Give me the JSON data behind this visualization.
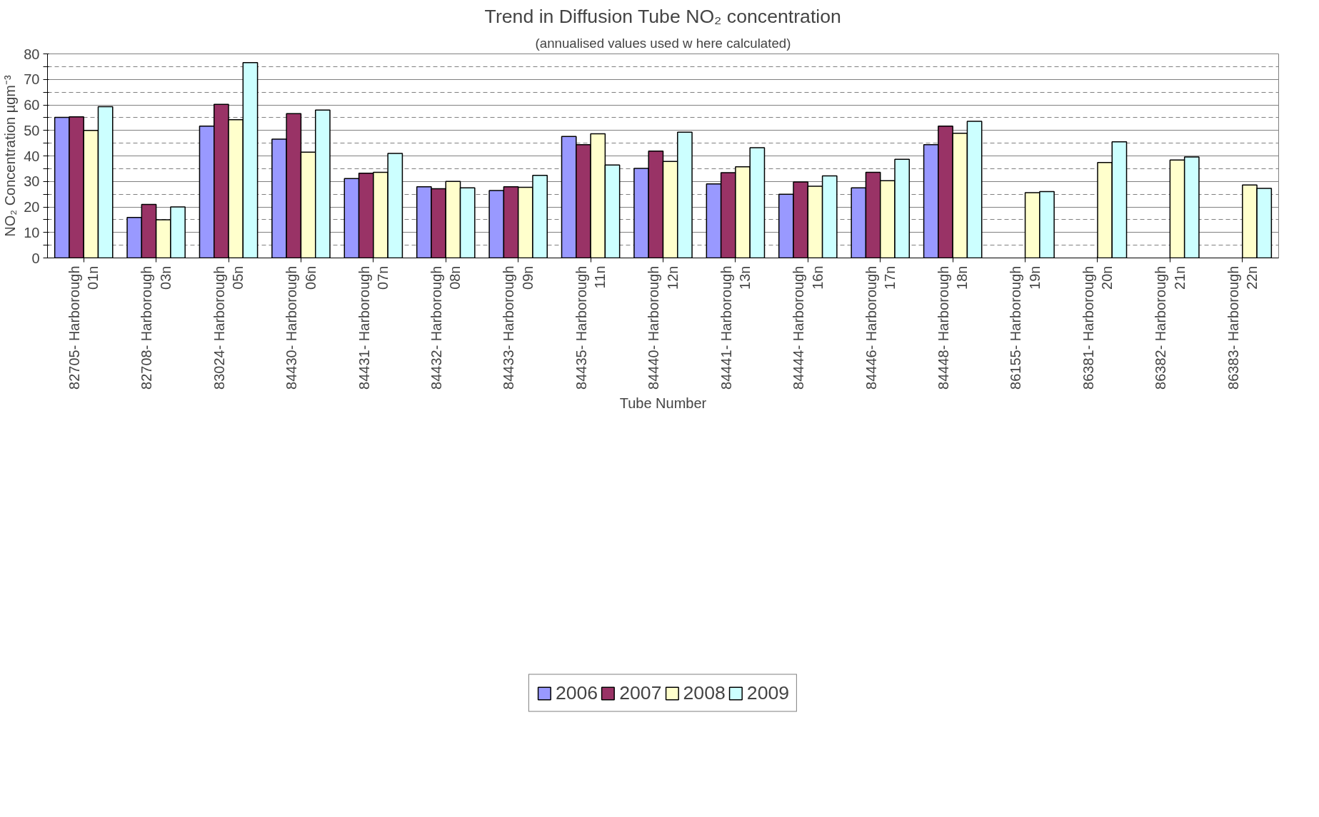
{
  "chart_data": {
    "type": "bar",
    "title": "Trend in Diffusion Tube NO₂ concentration",
    "subtitle": "(annualised values used w here calculated)",
    "xlabel": "Tube Number",
    "ylabel": "NO₂ Concentration µgm⁻³",
    "categories": [
      "82705- Harborough 01n",
      "82708- Harborough 03n",
      "83024- Harborough 05n",
      "84430- Harborough 06n",
      "84431- Harborough 07n",
      "84432- Harborough 08n",
      "84433- Harborough 09n",
      "84435- Harborough 11n",
      "84440- Harborough 12n",
      "84441- Harborough 13n",
      "84444- Harborough 16n",
      "84446- Harborough 17n",
      "84448- Harborough 18n",
      "86155- Harborough 19n",
      "86381- Harborough 20n",
      "86382- Harborough 21n",
      "86383- Harborough 22n"
    ],
    "series": [
      {
        "name": "2006",
        "color": "#9999ff",
        "values": [
          55.1,
          15.9,
          51.7,
          46.6,
          31.1,
          27.9,
          26.4,
          47.6,
          35.1,
          29.0,
          25.0,
          27.5,
          44.4,
          null,
          null,
          null,
          null
        ]
      },
      {
        "name": "2007",
        "color": "#993366",
        "values": [
          55.3,
          21.0,
          60.2,
          56.6,
          33.2,
          27.1,
          27.9,
          44.4,
          41.9,
          33.4,
          29.8,
          33.6,
          51.7,
          null,
          null,
          null,
          null
        ]
      },
      {
        "name": "2008",
        "color": "#ffffcc",
        "values": [
          50.0,
          15.0,
          54.2,
          41.5,
          33.6,
          30.0,
          27.7,
          48.7,
          37.8,
          35.7,
          28.1,
          30.3,
          48.9,
          25.6,
          37.4,
          38.4,
          28.6
        ]
      },
      {
        "name": "2009",
        "color": "#ccffff",
        "values": [
          59.3,
          20.0,
          76.6,
          58.0,
          41.0,
          27.5,
          32.4,
          36.4,
          49.3,
          43.2,
          32.2,
          38.7,
          53.6,
          26.0,
          45.5,
          39.6,
          27.3
        ]
      }
    ],
    "ylim": [
      0,
      80
    ],
    "yticks": [
      0,
      {
        "value": 5,
        "label": null
      },
      10,
      {
        "value": 15,
        "label": null
      },
      20,
      {
        "value": 25,
        "label": null
      },
      30,
      {
        "value": 35,
        "label": null
      },
      40,
      {
        "value": 45,
        "label": null
      },
      50,
      {
        "value": 55,
        "label": null
      },
      60,
      {
        "value": 65,
        "label": null
      },
      70,
      {
        "value": 75,
        "label": null
      },
      80
    ],
    "grid": "y",
    "legend": "bottom"
  }
}
